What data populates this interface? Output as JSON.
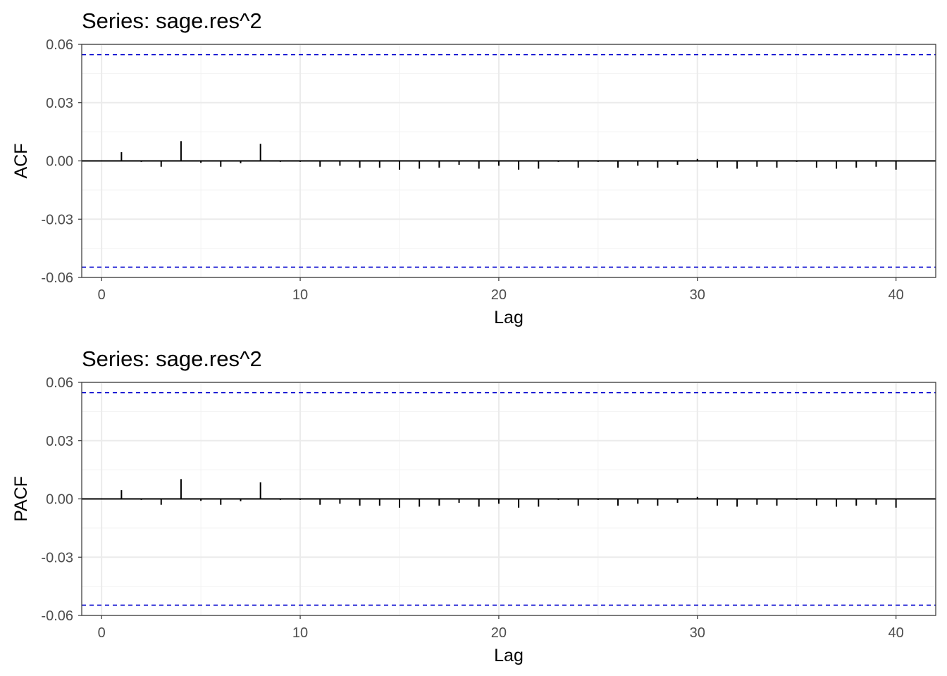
{
  "chart_data": [
    {
      "type": "bar",
      "title": "Series: sage.res^2",
      "xlabel": "Lag",
      "ylabel": "ACF",
      "xlim": [
        -1,
        42
      ],
      "ylim": [
        -0.06,
        0.06
      ],
      "x_ticks": [
        0,
        10,
        20,
        30,
        40
      ],
      "x_tick_labels": [
        "0",
        "10",
        "20",
        "30",
        "40"
      ],
      "y_ticks": [
        0.06,
        0.03,
        0.0,
        -0.03,
        -0.06
      ],
      "y_tick_labels": [
        "0.06",
        "0.03",
        "0.00",
        "-0.03",
        "-0.06"
      ],
      "grid": true,
      "lags": [
        1,
        2,
        3,
        4,
        5,
        6,
        7,
        8,
        9,
        10,
        11,
        12,
        13,
        14,
        15,
        16,
        17,
        18,
        19,
        20,
        21,
        22,
        23,
        24,
        25,
        26,
        27,
        28,
        29,
        30,
        31,
        32,
        33,
        34,
        35,
        36,
        37,
        38,
        39,
        40
      ],
      "values": [
        0.0045,
        -0.0005,
        -0.003,
        0.0102,
        -0.001,
        -0.003,
        -0.0012,
        0.0088,
        -0.0005,
        -0.0005,
        -0.003,
        -0.0025,
        -0.0035,
        -0.0035,
        -0.0045,
        -0.004,
        -0.0035,
        -0.002,
        -0.004,
        -0.0025,
        -0.0045,
        -0.004,
        -0.0005,
        -0.0035,
        -0.0005,
        -0.0035,
        -0.0025,
        -0.0035,
        -0.002,
        0.001,
        -0.0035,
        -0.004,
        -0.003,
        -0.0035,
        -0.0005,
        -0.0035,
        -0.004,
        -0.0035,
        -0.003,
        -0.0045
      ],
      "confidence_bounds": [
        0.0547,
        -0.0547
      ],
      "bound_color": "#0000cd",
      "spike_color": "#000000"
    },
    {
      "type": "bar",
      "title": "Series: sage.res^2",
      "xlabel": "Lag",
      "ylabel": "PACF",
      "xlim": [
        -1,
        42
      ],
      "ylim": [
        -0.06,
        0.06
      ],
      "x_ticks": [
        0,
        10,
        20,
        30,
        40
      ],
      "x_tick_labels": [
        "0",
        "10",
        "20",
        "30",
        "40"
      ],
      "y_ticks": [
        0.06,
        0.03,
        0.0,
        -0.03,
        -0.06
      ],
      "y_tick_labels": [
        "0.06",
        "0.03",
        "0.00",
        "-0.03",
        "-0.06"
      ],
      "grid": true,
      "lags": [
        1,
        2,
        3,
        4,
        5,
        6,
        7,
        8,
        9,
        10,
        11,
        12,
        13,
        14,
        15,
        16,
        17,
        18,
        19,
        20,
        21,
        22,
        23,
        24,
        25,
        26,
        27,
        28,
        29,
        30,
        31,
        32,
        33,
        34,
        35,
        36,
        37,
        38,
        39,
        40
      ],
      "values": [
        0.0045,
        -0.0005,
        -0.003,
        0.0102,
        -0.001,
        -0.003,
        -0.0012,
        0.0085,
        -0.0005,
        -0.0005,
        -0.003,
        -0.0025,
        -0.0035,
        -0.0035,
        -0.0045,
        -0.004,
        -0.0035,
        -0.002,
        -0.004,
        -0.0025,
        -0.0045,
        -0.004,
        -0.0005,
        -0.0035,
        -0.0005,
        -0.0035,
        -0.0025,
        -0.0035,
        -0.002,
        0.001,
        -0.0035,
        -0.004,
        -0.003,
        -0.0035,
        -0.0005,
        -0.0035,
        -0.004,
        -0.0035,
        -0.003,
        -0.0045
      ],
      "confidence_bounds": [
        0.0547,
        -0.0547
      ],
      "bound_color": "#0000cd",
      "spike_color": "#000000"
    }
  ]
}
